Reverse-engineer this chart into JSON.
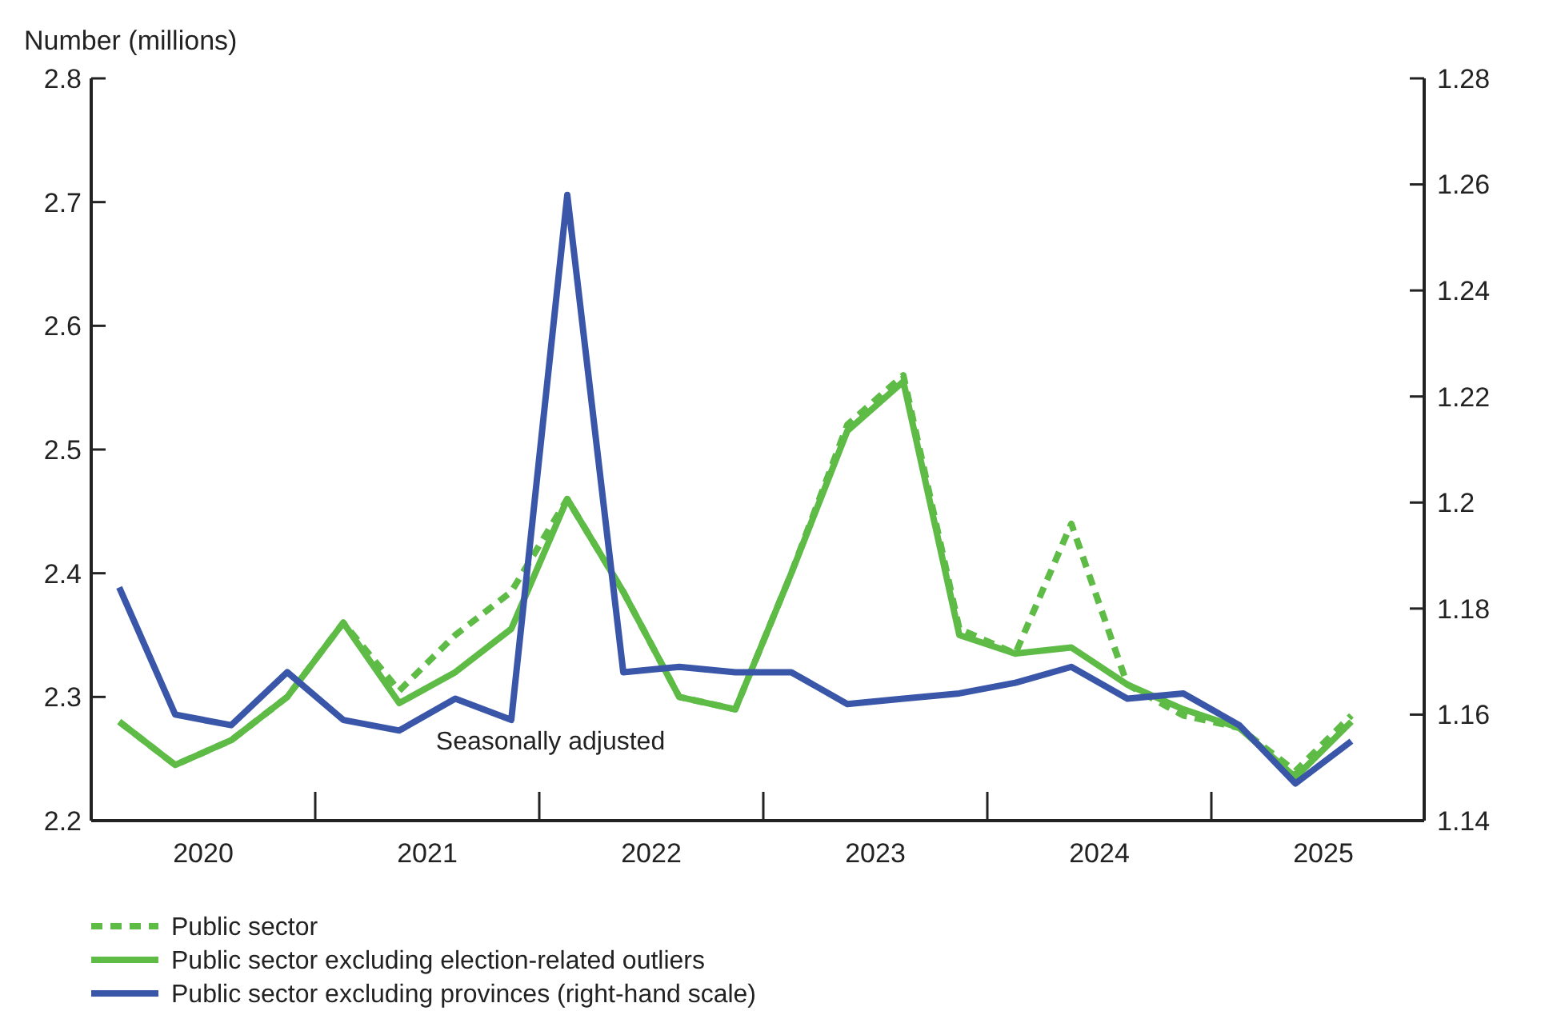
{
  "chart_data": {
    "type": "line",
    "ylabel": "Number (millions)",
    "annotations": [
      "Seasonally adjusted"
    ],
    "x": [
      2020.125,
      2020.375,
      2020.625,
      2020.875,
      2021.125,
      2021.375,
      2021.625,
      2021.875,
      2022.125,
      2022.375,
      2022.625,
      2022.875,
      2023.125,
      2023.375,
      2023.625,
      2023.875,
      2024.125,
      2024.375,
      2024.625,
      2024.875,
      2025.125,
      2025.375,
      2025.625
    ],
    "xlim": [
      2020,
      2025.95
    ],
    "xticks": [
      {
        "value": 2020.5,
        "label": "2020"
      },
      {
        "value": 2021.5,
        "label": "2021"
      },
      {
        "value": 2022.5,
        "label": "2022"
      },
      {
        "value": 2023.5,
        "label": "2023"
      },
      {
        "value": 2024.5,
        "label": "2024"
      },
      {
        "value": 2025.5,
        "label": "2025"
      }
    ],
    "ylim": [
      2.2,
      2.8
    ],
    "yticks": [
      2.2,
      2.3,
      2.4,
      2.5,
      2.6,
      2.7,
      2.8
    ],
    "y2lim": [
      1.14,
      1.28
    ],
    "y2ticks": [
      1.14,
      1.16,
      1.18,
      1.2,
      1.22,
      1.24,
      1.26,
      1.28
    ],
    "grid": false,
    "legend": "bottom",
    "series": [
      {
        "name": "Public sector",
        "color": "#5dbb46",
        "line_style": "dashed",
        "values": [
          2.28,
          2.245,
          2.265,
          2.3,
          2.36,
          2.305,
          2.35,
          2.385,
          2.46,
          2.385,
          2.3,
          2.29,
          2.4,
          2.52,
          2.56,
          2.355,
          2.335,
          2.44,
          2.31,
          2.285,
          2.275,
          2.24,
          2.285
        ]
      },
      {
        "name": "Public sector excluding election-related outliers",
        "color": "#5dbb46",
        "line_style": "solid",
        "values": [
          2.28,
          2.245,
          2.265,
          2.3,
          2.36,
          2.295,
          2.32,
          2.355,
          2.46,
          2.385,
          2.3,
          2.29,
          2.4,
          2.515,
          2.555,
          2.35,
          2.335,
          2.34,
          2.31,
          2.29,
          2.275,
          2.235,
          2.28
        ]
      },
      {
        "name": "Public sector excluding provinces (right-hand scale)",
        "color": "#3a56a8",
        "line_style": "solid",
        "axis": "y2",
        "values": [
          1.184,
          1.16,
          1.158,
          1.168,
          1.159,
          1.157,
          1.163,
          1.159,
          1.258,
          1.168,
          1.169,
          1.168,
          1.168,
          1.162,
          1.163,
          1.164,
          1.166,
          1.169,
          1.163,
          1.164,
          1.158,
          1.147,
          1.155
        ]
      }
    ]
  }
}
